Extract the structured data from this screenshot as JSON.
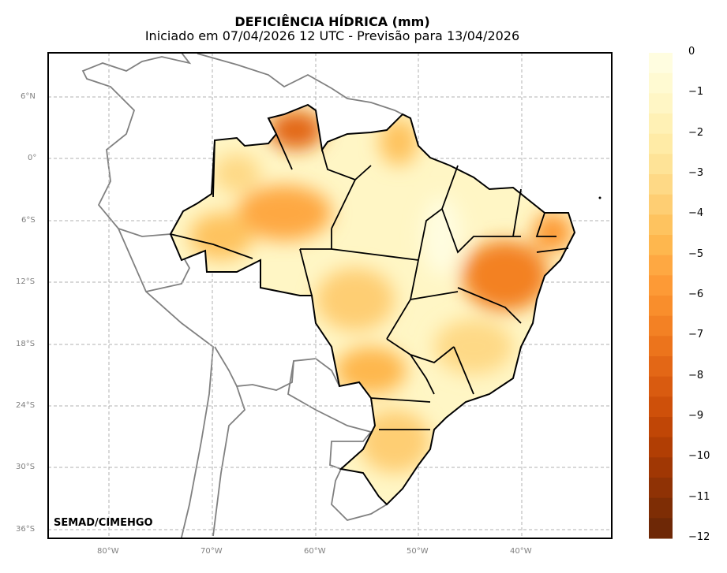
{
  "title": "DEFICIÊNCIA HÍDRICA (mm)",
  "subtitle": "Iniciado em 07/04/2026 12 UTC - Previsão para 13/04/2026",
  "credit": "SEMAD/CIMEHGO",
  "lon_ticks": [
    "80°W",
    "70°W",
    "60°W",
    "50°W",
    "40°W"
  ],
  "lat_ticks": [
    "6°N",
    "0°",
    "6°S",
    "12°S",
    "18°S",
    "24°S",
    "30°S",
    "36°S"
  ],
  "colorbar": {
    "labels": [
      "0",
      "−1",
      "−2",
      "−3",
      "−4",
      "−5",
      "−6",
      "−7",
      "−8",
      "−9",
      "−10",
      "−11",
      "−12"
    ],
    "min": -12,
    "max": 0,
    "step": 0.5,
    "colors": [
      "#fffde0",
      "#fffad2",
      "#fff6c5",
      "#fff1b5",
      "#ffeba6",
      "#fee397",
      "#fed986",
      "#fece73",
      "#fec35f",
      "#feb74e",
      "#fea842",
      "#fd9a36",
      "#f98e2c",
      "#f38124",
      "#ec741c",
      "#e36716",
      "#d95b10",
      "#ce500a",
      "#c04606",
      "#b13e04",
      "#a03704",
      "#8f3205",
      "#7e2d05",
      "#6e2806"
    ]
  }
}
